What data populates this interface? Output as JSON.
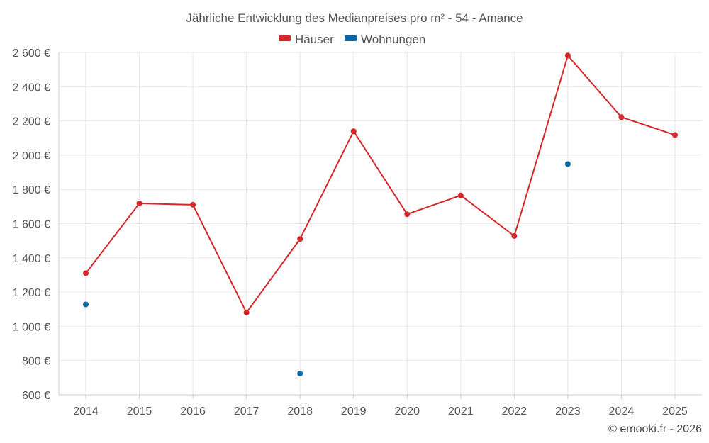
{
  "chart_data": {
    "type": "line",
    "title": "Jährliche Entwicklung des Medianpreises pro m² - 54 - Amance",
    "categories": [
      "2014",
      "2015",
      "2016",
      "2017",
      "2018",
      "2019",
      "2020",
      "2021",
      "2022",
      "2023",
      "2024",
      "2025"
    ],
    "series": [
      {
        "name": "Häuser",
        "color": "#d62728",
        "line": true,
        "values": [
          1310,
          1718,
          1710,
          1080,
          1510,
          2140,
          1655,
          1765,
          1528,
          2582,
          2222,
          2118
        ]
      },
      {
        "name": "Wohnungen",
        "color": "#0b67a3",
        "line": false,
        "values": [
          1128,
          null,
          null,
          null,
          724,
          null,
          null,
          null,
          null,
          1948,
          null,
          null
        ]
      }
    ],
    "ylim": [
      600,
      2600
    ],
    "yticks": [
      600,
      800,
      1000,
      1200,
      1400,
      1600,
      1800,
      2000,
      2200,
      2400,
      2600
    ],
    "ytick_labels": [
      "600 €",
      "800 €",
      "1 000 €",
      "1 200 €",
      "1 400 €",
      "1 600 €",
      "1 800 €",
      "2 000 €",
      "2 200 €",
      "2 400 €",
      "2 600 €"
    ],
    "legend": "top-center",
    "grid": true
  },
  "credit": "© emooki.fr - 2026"
}
